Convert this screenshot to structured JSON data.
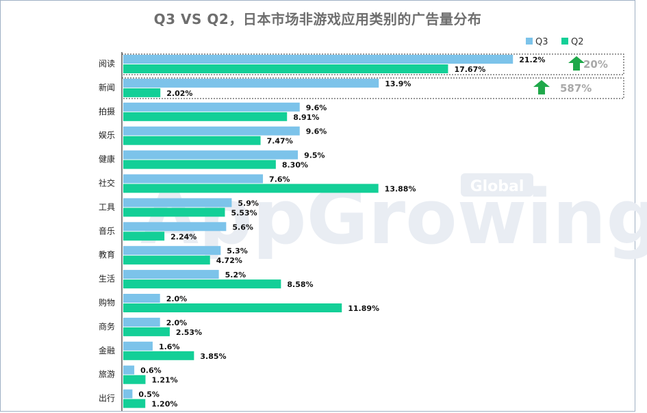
{
  "colors": {
    "q3": "#7cc3ea",
    "q2": "#13cf97",
    "arrow": "#1fa84a",
    "growth_text": "#a9a9a9"
  },
  "chart_data": {
    "type": "bar",
    "orientation": "horizontal",
    "title": "Q3 VS Q2，日本市场非游戏应用类别的广告量分布",
    "categories": [
      "阅读",
      "新闻",
      "拍摄",
      "娱乐",
      "健康",
      "社交",
      "工具",
      "音乐",
      "教育",
      "生活",
      "购物",
      "商务",
      "金融",
      "旅游",
      "出行"
    ],
    "series": [
      {
        "name": "Q3",
        "values": [
          21.2,
          13.9,
          9.6,
          9.6,
          9.5,
          7.6,
          5.9,
          5.6,
          5.3,
          5.2,
          2.0,
          2.0,
          1.6,
          0.6,
          0.5
        ],
        "labels": [
          "21.2%",
          "13.9%",
          "9.6%",
          "9.6%",
          "9.5%",
          "7.6%",
          "5.9%",
          "5.6%",
          "5.3%",
          "5.2%",
          "2.0%",
          "2.0%",
          "1.6%",
          "0.6%",
          "0.5%"
        ]
      },
      {
        "name": "Q2",
        "values": [
          17.67,
          2.02,
          8.91,
          7.47,
          8.3,
          13.88,
          5.53,
          2.24,
          4.72,
          8.58,
          11.89,
          2.53,
          3.85,
          1.21,
          1.2
        ],
        "labels": [
          "17.67%",
          "2.02%",
          "8.91%",
          "7.47%",
          "8.30%",
          "13.88%",
          "5.53%",
          "2.24%",
          "4.72%",
          "8.58%",
          "11.89%",
          "2.53%",
          "3.85%",
          "1.21%",
          "1.20%"
        ]
      }
    ],
    "legend_position": "top-right",
    "annotations": [
      {
        "category": "阅读",
        "text": "20%",
        "icon": "up-arrow-icon"
      },
      {
        "category": "新闻",
        "text": "587%",
        "icon": "up-arrow-icon"
      }
    ],
    "watermark": {
      "main": "AppGrowing",
      "badge": "Global"
    }
  }
}
